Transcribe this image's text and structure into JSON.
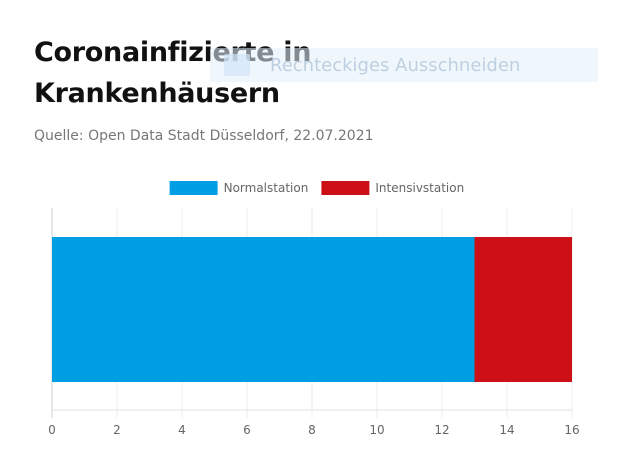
{
  "header": {
    "title": "Coronainfizierte in Krankenhäusern",
    "source": "Quelle: Open Data Stadt Düsseldorf, 22.07.2021"
  },
  "overlay": {
    "label": "Rechteckiges Ausschneiden"
  },
  "chart_data": {
    "type": "bar",
    "orientation": "horizontal",
    "stacked": true,
    "categories": [
      ""
    ],
    "series": [
      {
        "name": "Normalstation",
        "color": "#009ee3",
        "values": [
          13
        ]
      },
      {
        "name": "Intensivstation",
        "color": "#cc1016",
        "values": [
          3
        ]
      }
    ],
    "xlim": [
      0,
      16
    ],
    "xticks": [
      "0",
      "2",
      "4",
      "6",
      "8",
      "10",
      "12",
      "14",
      "16"
    ],
    "grid": true,
    "legend_position": "top"
  }
}
